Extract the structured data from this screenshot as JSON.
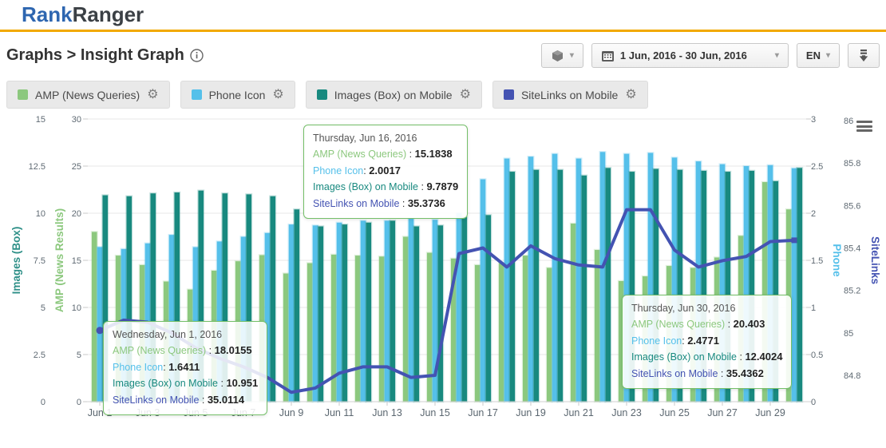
{
  "header": {
    "logo_part1": "Rank",
    "logo_part2": "Ranger"
  },
  "breadcrumb": {
    "title": "Graphs > Insight Graph"
  },
  "toolbar": {
    "date_range_label": "1 Jun, 2016 - 30 Jun, 2016",
    "language_label": "EN",
    "caret": "▾"
  },
  "legend": {
    "gear_glyph": "⚙",
    "items": [
      {
        "label": "AMP (News Queries)"
      },
      {
        "label": "Phone Icon"
      },
      {
        "label": "Images (Box) on Mobile"
      },
      {
        "label": "SiteLinks on Mobile"
      }
    ]
  },
  "chart_data": {
    "type": "bar",
    "note": "combo column + line chart, 4 y-axes",
    "categories": [
      "Jun 1",
      "Jun 2",
      "Jun 3",
      "Jun 4",
      "Jun 5",
      "Jun 6",
      "Jun 7",
      "Jun 8",
      "Jun 9",
      "Jun 10",
      "Jun 11",
      "Jun 12",
      "Jun 13",
      "Jun 14",
      "Jun 15",
      "Jun 16",
      "Jun 17",
      "Jun 18",
      "Jun 19",
      "Jun 20",
      "Jun 21",
      "Jun 22",
      "Jun 23",
      "Jun 24",
      "Jun 25",
      "Jun 26",
      "Jun 27",
      "Jun 28",
      "Jun 29",
      "Jun 30"
    ],
    "x_shown_labels": [
      "Jun 1",
      "Jun 3",
      "Jun 5",
      "Jun 7",
      "Jun 9",
      "Jun 11",
      "Jun 13",
      "Jun 15",
      "Jun 17",
      "Jun 19",
      "Jun 21",
      "Jun 23",
      "Jun 25",
      "Jun 27",
      "Jun 29"
    ],
    "series": [
      {
        "name": "AMP (News Queries)",
        "render": "bar",
        "axis": "amp",
        "color": "#8CC87E",
        "values": [
          18.0155,
          15.5,
          14.5,
          12.75,
          11.9,
          13.9,
          14.9,
          15.55,
          13.6,
          14.7,
          15.6,
          15.5,
          15.4,
          17.5,
          15.8,
          15.1838,
          14.5,
          14.7,
          15.5,
          14.2,
          18.9,
          16.1,
          12.8,
          13.3,
          14.4,
          14.2,
          15.3,
          17.6,
          23.3,
          20.403
        ]
      },
      {
        "name": "Phone Icon",
        "render": "bar",
        "axis": "phone",
        "color": "#55C0EA",
        "values": [
          1.6411,
          1.62,
          1.68,
          1.77,
          1.64,
          1.7,
          1.75,
          1.79,
          1.88,
          1.87,
          1.9,
          1.92,
          1.92,
          1.95,
          1.93,
          2.0017,
          2.36,
          2.58,
          2.6,
          2.63,
          2.58,
          2.65,
          2.63,
          2.64,
          2.59,
          2.55,
          2.52,
          2.5,
          2.51,
          2.4771
        ]
      },
      {
        "name": "Images (Box) on Mobile",
        "render": "bar",
        "axis": "images",
        "color": "#18897F",
        "values": [
          10.951,
          10.9,
          11.05,
          11.1,
          11.2,
          11.05,
          11.0,
          10.9,
          10.2,
          9.3,
          9.4,
          9.5,
          9.6,
          9.3,
          9.35,
          9.7879,
          9.9,
          12.2,
          12.3,
          12.3,
          12.0,
          12.4,
          12.2,
          12.35,
          12.3,
          12.25,
          12.2,
          12.25,
          11.7,
          12.4024
        ]
      },
      {
        "name": "SiteLinks on Mobile",
        "render": "line",
        "axis": "sitelinks",
        "color": "#4453B2",
        "values": [
          35.0114,
          35.06,
          35.05,
          35.0,
          34.93,
          34.88,
          34.84,
          34.79,
          34.72,
          34.74,
          34.81,
          34.84,
          34.84,
          34.79,
          34.8,
          35.3736,
          35.4,
          35.31,
          35.41,
          35.35,
          35.32,
          35.31,
          35.58,
          35.58,
          35.39,
          35.31,
          35.34,
          35.36,
          35.43,
          35.4362
        ]
      }
    ],
    "axes": {
      "images": {
        "title": "Images (Box)",
        "color": "#2F9088",
        "range": [
          0,
          15
        ],
        "ticks": [
          0,
          2.5,
          5,
          7.5,
          10,
          12.5,
          15
        ],
        "side": "left"
      },
      "amp": {
        "title": "AMP (News Results)",
        "color": "#8CC87E",
        "range": [
          0,
          30
        ],
        "ticks": [
          0,
          5,
          10,
          15,
          20,
          25,
          30
        ],
        "side": "left"
      },
      "phone": {
        "title": "Phone",
        "color": "#55C0EA",
        "range": [
          0,
          3
        ],
        "ticks": [
          0,
          0.5,
          1,
          1.5,
          2,
          2.5,
          3
        ],
        "side": "right"
      },
      "sitelinks": {
        "title": "SiteLinks",
        "color": "#4453B2",
        "tick_labels": [
          "86",
          "85.8",
          "85.6",
          "85.4",
          "85.2",
          "85",
          "84.8"
        ],
        "display_offset": 50,
        "side": "right"
      }
    },
    "grid": "horizontal",
    "legend_position": "top-chips"
  },
  "tooltips": [
    {
      "date": "Thursday, Jun 16, 2016",
      "rows": [
        {
          "label": "AMP (News Queries)",
          "sep": " : ",
          "value": "15.1838"
        },
        {
          "label": "Phone Icon",
          "sep": ": ",
          "value": "2.0017"
        },
        {
          "label": "Images (Box) on Mobile",
          "sep": " : ",
          "value": "9.7879"
        },
        {
          "label": "SiteLinks on Mobile",
          "sep": " : ",
          "value": "35.3736"
        }
      ]
    },
    {
      "date": "Wednesday, Jun 1, 2016",
      "rows": [
        {
          "label": "AMP (News Queries)",
          "sep": " : ",
          "value": "18.0155"
        },
        {
          "label": "Phone Icon",
          "sep": ": ",
          "value": "1.6411"
        },
        {
          "label": "Images (Box) on Mobile",
          "sep": " : ",
          "value": "10.951"
        },
        {
          "label": "SiteLinks on Mobile",
          "sep": " : ",
          "value": "35.0114"
        }
      ]
    },
    {
      "date": "Thursday, Jun 30, 2016",
      "rows": [
        {
          "label": "AMP (News Queries)",
          "sep": " : ",
          "value": "20.403"
        },
        {
          "label": "Phone Icon",
          "sep": ": ",
          "value": "2.4771"
        },
        {
          "label": "Images (Box) on Mobile",
          "sep": " : ",
          "value": "12.4024"
        },
        {
          "label": "SiteLinks on Mobile",
          "sep": " : ",
          "value": "35.4362"
        }
      ]
    }
  ]
}
